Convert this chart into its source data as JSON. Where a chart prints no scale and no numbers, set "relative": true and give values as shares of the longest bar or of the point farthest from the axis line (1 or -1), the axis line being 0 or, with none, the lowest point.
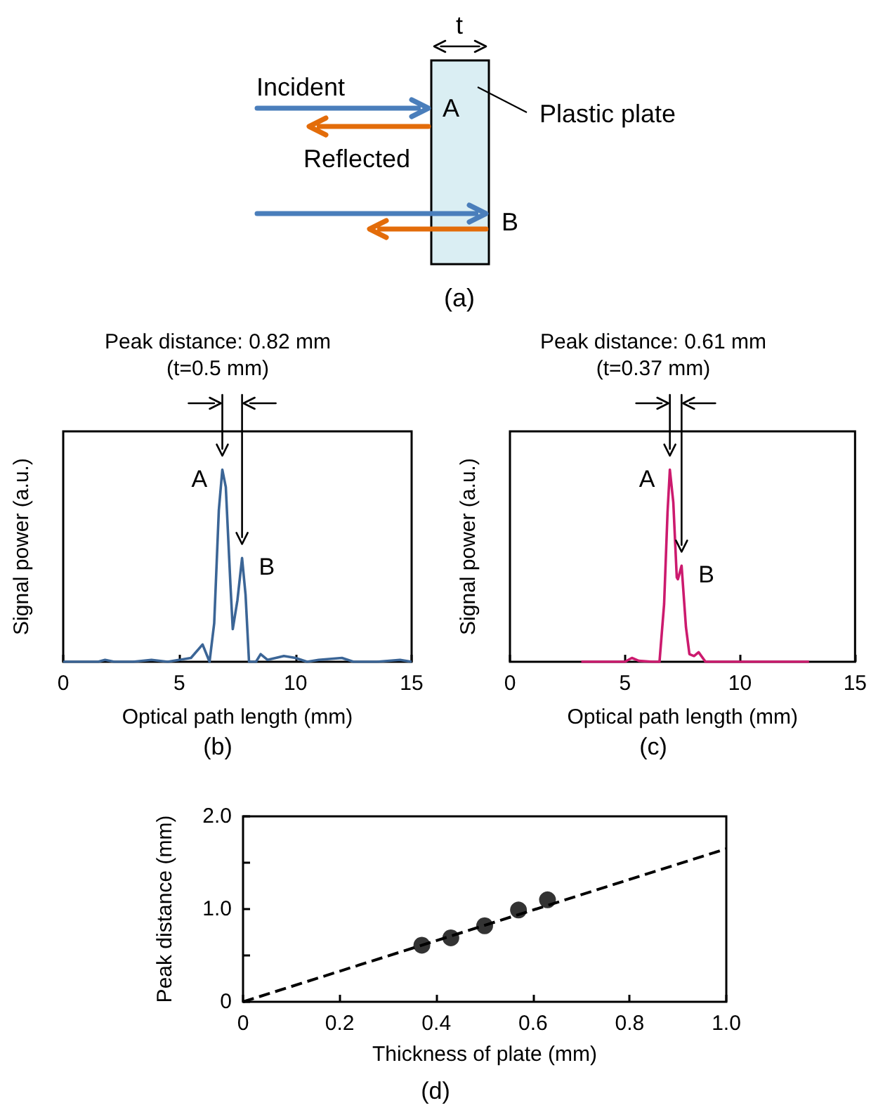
{
  "chart_data": [
    {
      "type": "other",
      "annotations": [
        "t",
        "Incident",
        "A",
        "Plastic plate",
        "Reflected",
        "B",
        "(a)"
      ]
    },
    {
      "type": "line",
      "relative": true,
      "title": "Peak distance: 0.82 mm",
      "subtitle": "(t=0.5 mm)",
      "xlabel": "Optical path length (mm)",
      "ylabel": "Signal power (a.u.)",
      "xlim": [
        0,
        15
      ],
      "xticks": [
        0,
        5,
        10,
        15
      ],
      "marker": "none",
      "annotations": [
        "(b)",
        {
          "text": "A",
          "x": 6.85,
          "y": 1
        },
        {
          "text": "B",
          "x": 7.7,
          "y": 0.54
        }
      ],
      "series": [
        {
          "color": "#3b6596",
          "x": [
            0,
            1.5,
            1.8,
            2.2,
            3.0,
            3.8,
            4.5,
            5.5,
            6.0,
            6.3,
            6.5,
            6.7,
            6.85,
            7.0,
            7.2,
            7.3,
            7.5,
            7.7,
            7.85,
            8.0,
            8.3,
            8.5,
            8.8,
            9.5,
            10.0,
            10.5,
            11.0,
            12.0,
            12.5,
            13.5,
            14.5,
            15
          ],
          "values": [
            0,
            0,
            0.01,
            0,
            0,
            0.01,
            0,
            0.02,
            0.09,
            0,
            0.2,
            0.79,
            1,
            0.91,
            0.4,
            0.17,
            0.32,
            0.54,
            0.35,
            0,
            0,
            0.04,
            0.01,
            0.03,
            0.02,
            0,
            0.01,
            0.02,
            0,
            0,
            0.01,
            0
          ]
        }
      ]
    },
    {
      "type": "line",
      "relative": true,
      "title": "Peak distance: 0.61 mm",
      "subtitle": "(t=0.37 mm)",
      "xlabel": "Optical path length (mm)",
      "ylabel": "Signal power (a.u.)",
      "xlim": [
        0,
        15
      ],
      "xticks": [
        0,
        5,
        10,
        15
      ],
      "marker": "none",
      "annotations": [
        "(c)",
        {
          "text": "A",
          "x": 6.95,
          "y": 1
        },
        {
          "text": "B",
          "x": 7.46,
          "y": 0.5
        }
      ],
      "series": [
        {
          "color": "#cc1a6e",
          "x": [
            3.1,
            5.0,
            5.3,
            5.6,
            6.2,
            6.5,
            6.7,
            6.85,
            6.95,
            7.1,
            7.25,
            7.3,
            7.46,
            7.65,
            7.8,
            8.0,
            8.2,
            8.5,
            9.0,
            13.0
          ],
          "values": [
            0,
            0,
            0.02,
            0.005,
            0,
            0,
            0.3,
            0.78,
            1,
            0.83,
            0.44,
            0.43,
            0.5,
            0.18,
            0.04,
            0.03,
            0.05,
            0,
            0,
            0
          ]
        }
      ]
    },
    {
      "type": "scatter",
      "xlabel": "Thickness of plate (mm)",
      "ylabel": "Peak distance (mm)",
      "xlim": [
        0,
        1
      ],
      "ylim": [
        0,
        2
      ],
      "xticks": [
        0,
        0.2,
        0.4,
        0.6,
        0.8,
        {
          "value": 1,
          "label": "1.0"
        }
      ],
      "yticks": [
        0,
        {
          "value": 0.5,
          "label": null
        },
        {
          "value": 1,
          "label": "1.0"
        },
        {
          "value": 1.5,
          "label": null
        },
        {
          "value": 2,
          "label": "2.0"
        }
      ],
      "annotations": [
        "(d)"
      ],
      "series": [
        {
          "type": "scatter",
          "marker": "circle",
          "color": "#000000",
          "x": [
            0.37,
            0.43,
            0.5,
            0.57,
            0.63
          ],
          "values": [
            0.61,
            0.69,
            0.82,
            0.99,
            1.1
          ]
        },
        {
          "type": "line",
          "marker": "none",
          "line_style": "dashed",
          "color": "#000000",
          "x": [
            0,
            1
          ],
          "values": [
            0,
            1.65
          ]
        }
      ]
    }
  ]
}
